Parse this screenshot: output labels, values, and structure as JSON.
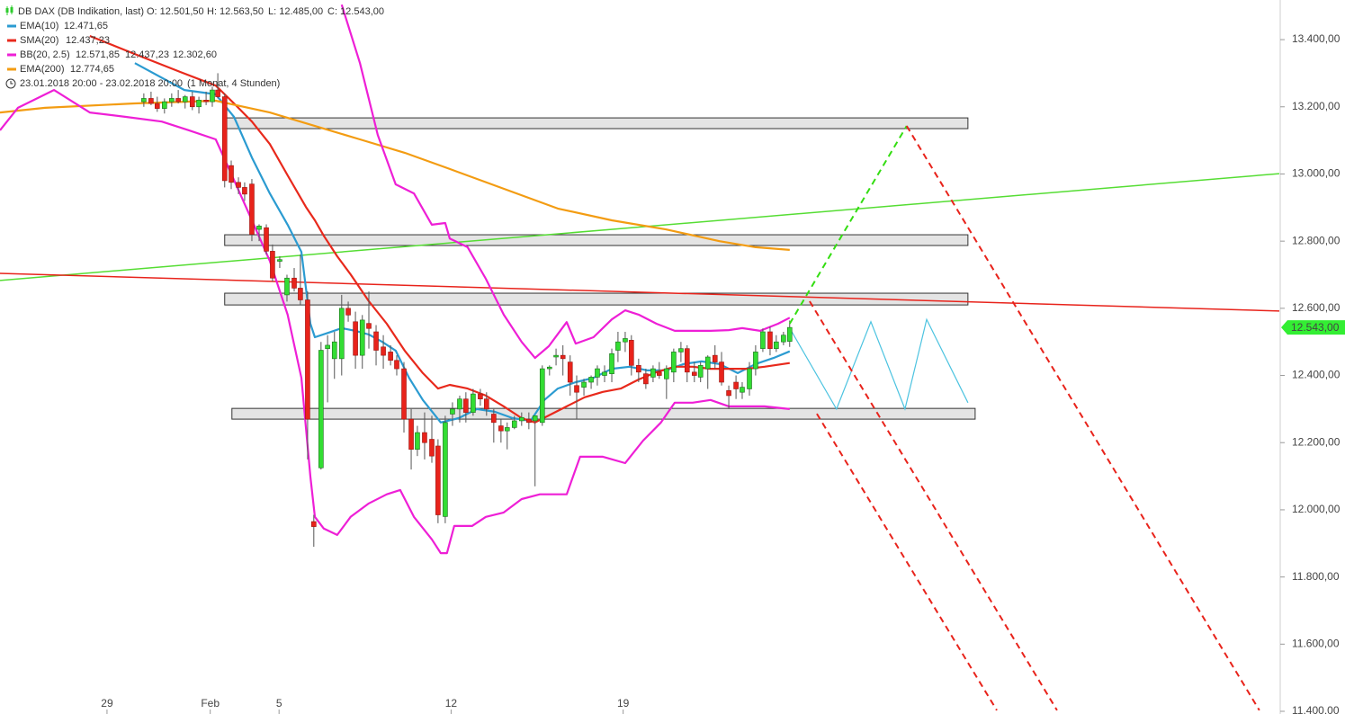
{
  "chart_data": {
    "type": "candlestick",
    "instrument": "DB DAX (DB Indikation, last)",
    "ohlc_labels": [
      "O: 12.501,50",
      "H: 12.563,50",
      "L: 12.485,00",
      "C: 12.543,00"
    ],
    "period": "23.01.2018 20:00 - 23.02.2018 20:00",
    "period_note": "(1 Monat, 4 Stunden)",
    "last_price_label": "12.543,00",
    "last_price_color": "#33ee33",
    "up_color": "#33dd33",
    "down_color": "#e8231b",
    "header_color": "#2ecc2e",
    "xlim": [
      -3.11,
      34.07
    ],
    "ylim": [
      11392,
      13518
    ],
    "xticks": [
      {
        "value": 0,
        "label": "29"
      },
      {
        "value": 3,
        "label": "Feb"
      },
      5,
      {
        "value": 10,
        "label": "12"
      },
      {
        "value": 15,
        "label": "19"
      }
    ],
    "yticks": [
      {
        "value": 13400,
        "label": "13.400,00"
      },
      {
        "value": 13200,
        "label": "13.200,00"
      },
      {
        "value": 13000,
        "label": "13.000,00"
      },
      {
        "value": 12800,
        "label": "12.800,00"
      },
      {
        "value": 12600,
        "label": "12.600,00"
      },
      {
        "value": 12400,
        "label": "12.400,00"
      },
      {
        "value": 12200,
        "label": "12.200,00"
      },
      {
        "value": 12000,
        "label": "12.000,00"
      },
      {
        "value": 11800,
        "label": "11.800,00"
      },
      {
        "value": 11600,
        "label": "11.600,00"
      },
      {
        "value": 11400,
        "label": "11.400,00"
      }
    ],
    "x": [
      1.07,
      1.28,
      1.46,
      1.67,
      1.88,
      2.07,
      2.27,
      2.48,
      2.67,
      2.88,
      3.06,
      3.22,
      3.42,
      3.61,
      3.82,
      4.0,
      4.21,
      4.42,
      4.63,
      4.81,
      5.02,
      5.23,
      5.44,
      5.62,
      5.83,
      6.01,
      6.22,
      6.41,
      6.61,
      6.82,
      7.01,
      7.22,
      7.42,
      7.61,
      7.82,
      8.03,
      8.24,
      8.42,
      8.63,
      8.84,
      9.02,
      9.23,
      9.44,
      9.62,
      9.83,
      10.04,
      10.25,
      10.43,
      10.64,
      10.85,
      11.03,
      11.24,
      11.45,
      11.63,
      11.84,
      12.05,
      12.26,
      12.44,
      12.65,
      12.86,
      13.05,
      13.25,
      13.46,
      13.65,
      13.86,
      14.07,
      14.25,
      14.46,
      14.67,
      14.85,
      15.06,
      15.24,
      15.45,
      15.66,
      15.87,
      16.05,
      16.26,
      16.47,
      16.68,
      16.86,
      17.07,
      17.25,
      17.46,
      17.67,
      17.86,
      18.07,
      18.28,
      18.46,
      18.67,
      18.85,
      19.06,
      19.27,
      19.45,
      19.66,
      19.84
    ],
    "ohlc": [
      [
        13215,
        13240,
        13200,
        13225
      ],
      [
        13225,
        13245,
        13205,
        13210
      ],
      [
        13210,
        13230,
        13185,
        13195
      ],
      [
        13195,
        13225,
        13180,
        13215
      ],
      [
        13215,
        13240,
        13200,
        13225
      ],
      [
        13225,
        13250,
        13210,
        13215
      ],
      [
        13215,
        13235,
        13195,
        13230
      ],
      [
        13230,
        13245,
        13190,
        13200
      ],
      [
        13200,
        13230,
        13180,
        13220
      ],
      [
        13220,
        13245,
        13205,
        13215
      ],
      [
        13215,
        13260,
        13200,
        13250
      ],
      [
        13250,
        13300,
        13225,
        13230
      ],
      [
        13230,
        13240,
        12960,
        12980
      ],
      [
        13025,
        13040,
        12955,
        12975
      ],
      [
        12975,
        12990,
        12940,
        12960
      ],
      [
        12960,
        12975,
        12920,
        12940
      ],
      [
        12970,
        12985,
        12800,
        12820
      ],
      [
        12835,
        12850,
        12800,
        12845
      ],
      [
        12840,
        12850,
        12760,
        12770
      ],
      [
        12770,
        12790,
        12680,
        12690
      ],
      [
        12740,
        12755,
        12720,
        12745
      ],
      [
        12640,
        12700,
        12620,
        12690
      ],
      [
        12690,
        12720,
        12650,
        12660
      ],
      [
        12660,
        12760,
        12610,
        12625
      ],
      [
        12625,
        12650,
        12150,
        12270
      ],
      [
        11965,
        11985,
        11890,
        11950
      ],
      [
        12125,
        12500,
        12120,
        12475
      ],
      [
        12480,
        12520,
        12320,
        12490
      ],
      [
        12450,
        12530,
        12390,
        12500
      ],
      [
        12450,
        12640,
        12400,
        12600
      ],
      [
        12600,
        12620,
        12560,
        12580
      ],
      [
        12560,
        12590,
        12420,
        12460
      ],
      [
        12460,
        12580,
        12420,
        12565
      ],
      [
        12555,
        12650,
        12480,
        12540
      ],
      [
        12530,
        12550,
        12430,
        12475
      ],
      [
        12485,
        12520,
        12420,
        12460
      ],
      [
        12470,
        12490,
        12430,
        12445
      ],
      [
        12445,
        12460,
        12400,
        12420
      ],
      [
        12420,
        12440,
        12230,
        12270
      ],
      [
        12270,
        12300,
        12120,
        12180
      ],
      [
        12180,
        12250,
        12160,
        12230
      ],
      [
        12230,
        12290,
        12150,
        12200
      ],
      [
        12210,
        12280,
        12140,
        12160
      ],
      [
        12190,
        12210,
        11960,
        11985
      ],
      [
        11980,
        12280,
        11960,
        12260
      ],
      [
        12285,
        12320,
        12250,
        12300
      ],
      [
        12300,
        12340,
        12260,
        12330
      ],
      [
        12330,
        12350,
        12260,
        12290
      ],
      [
        12290,
        12360,
        12280,
        12345
      ],
      [
        12345,
        12360,
        12310,
        12330
      ],
      [
        12330,
        12350,
        12280,
        12300
      ],
      [
        12285,
        12300,
        12200,
        12260
      ],
      [
        12250,
        12270,
        12200,
        12235
      ],
      [
        12235,
        12260,
        12180,
        12245
      ],
      [
        12245,
        12280,
        12240,
        12265
      ],
      [
        12265,
        12290,
        12250,
        12275
      ],
      [
        12270,
        12290,
        12240,
        12260
      ],
      [
        12265,
        12280,
        12070,
        12280
      ],
      [
        12260,
        12430,
        12250,
        12420
      ],
      [
        12420,
        12430,
        12400,
        12425
      ],
      [
        12455,
        12480,
        12430,
        12460
      ],
      [
        12460,
        12490,
        12400,
        12450
      ],
      [
        12440,
        12460,
        12340,
        12380
      ],
      [
        12370,
        12400,
        12270,
        12350
      ],
      [
        12365,
        12390,
        12340,
        12380
      ],
      [
        12380,
        12400,
        12360,
        12395
      ],
      [
        12395,
        12430,
        12370,
        12420
      ],
      [
        12400,
        12430,
        12380,
        12410
      ],
      [
        12405,
        12480,
        12380,
        12465
      ],
      [
        12475,
        12530,
        12440,
        12500
      ],
      [
        12500,
        12530,
        12470,
        12510
      ],
      [
        12505,
        12520,
        12400,
        12430
      ],
      [
        12430,
        12450,
        12380,
        12410
      ],
      [
        12405,
        12420,
        12360,
        12375
      ],
      [
        12395,
        12430,
        12380,
        12420
      ],
      [
        12410,
        12440,
        12390,
        12400
      ],
      [
        12390,
        12430,
        12330,
        12420
      ],
      [
        12410,
        12480,
        12380,
        12470
      ],
      [
        12470,
        12500,
        12440,
        12480
      ],
      [
        12480,
        12490,
        12380,
        12410
      ],
      [
        12410,
        12440,
        12380,
        12400
      ],
      [
        12395,
        12440,
        12380,
        12430
      ],
      [
        12420,
        12460,
        12360,
        12455
      ],
      [
        12460,
        12490,
        12420,
        12440
      ],
      [
        12440,
        12470,
        12370,
        12380
      ],
      [
        12355,
        12370,
        12300,
        12340
      ],
      [
        12380,
        12400,
        12330,
        12360
      ],
      [
        12350,
        12380,
        12330,
        12365
      ],
      [
        12360,
        12440,
        12340,
        12420
      ],
      [
        12420,
        12490,
        12400,
        12470
      ],
      [
        12480,
        12540,
        12470,
        12530
      ],
      [
        12530,
        12545,
        12460,
        12480
      ],
      [
        12480,
        12520,
        12470,
        12500
      ],
      [
        12500,
        12530,
        12490,
        12520
      ],
      [
        12501.5,
        12563.5,
        12485,
        12543
      ]
    ],
    "indicators": [
      {
        "name": "EMA(10)",
        "value_label": "12.471,65",
        "color": "#2b9bd1",
        "x": [
          0.81,
          2.25,
          3.16,
          3.69,
          4.21,
          4.73,
          5.25,
          5.65,
          5.91,
          6.04,
          6.43,
          6.82,
          7.22,
          7.61,
          8.0,
          8.39,
          8.78,
          9.18,
          9.7,
          10.22,
          10.75,
          11.27,
          11.79,
          12.31,
          12.71,
          13.1,
          13.62,
          14.14,
          14.67,
          15.19,
          15.71,
          16.24,
          16.76,
          17.28,
          17.8,
          18.33,
          18.85,
          19.37,
          19.84
        ],
        "values": [
          13330,
          13250,
          13237,
          13170,
          13049,
          12942,
          12849,
          12768,
          12554,
          12514,
          12527,
          12541,
          12533,
          12522,
          12500,
          12474,
          12393,
          12327,
          12260,
          12273,
          12300,
          12292,
          12273,
          12265,
          12327,
          12361,
          12380,
          12393,
          12420,
          12426,
          12415,
          12415,
          12434,
          12442,
          12434,
          12407,
          12434,
          12452,
          12472
        ]
      },
      {
        "name": "SMA(20)",
        "value_label": "12.437,23",
        "color": "#e8291c",
        "x": [
          -0.5,
          0.81,
          2.12,
          3.16,
          3.69,
          4.21,
          4.73,
          5.25,
          5.78,
          6.04,
          6.3,
          6.69,
          7.08,
          7.61,
          8.13,
          8.65,
          9.18,
          9.62,
          9.96,
          10.48,
          11.01,
          11.53,
          12.05,
          12.44,
          12.84,
          13.36,
          13.88,
          14.41,
          14.93,
          15.45,
          15.97,
          16.5,
          17.02,
          17.54,
          18.07,
          18.59,
          19.11,
          19.84
        ],
        "values": [
          13411,
          13357,
          13304,
          13263,
          13210,
          13156,
          13089,
          12996,
          12902,
          12862,
          12816,
          12755,
          12701,
          12621,
          12554,
          12474,
          12407,
          12361,
          12372,
          12361,
          12340,
          12308,
          12273,
          12260,
          12281,
          12308,
          12335,
          12351,
          12361,
          12388,
          12410,
          12426,
          12426,
          12420,
          12420,
          12420,
          12426,
          12437
        ]
      },
      {
        "name": "EMA(200)",
        "value_label": "12.774,65",
        "color": "#f39c12",
        "x": [
          -3.11,
          -1.8,
          0.81,
          3.16,
          4.73,
          6.04,
          7.35,
          8.65,
          9.96,
          11.53,
          13.1,
          14.67,
          16.24,
          17.8,
          18.85,
          19.84
        ],
        "values": [
          13183,
          13197,
          13210,
          13218,
          13183,
          13143,
          13103,
          13063,
          13015,
          12956,
          12897,
          12862,
          12835,
          12800,
          12782,
          12774
        ]
      }
    ],
    "bands": {
      "name": "BB(20, 2.5)",
      "value_labels": [
        "12.571,85",
        "12.437,23",
        "12.302,60"
      ],
      "color": "#ee1fd6",
      "upper": {
        "x": [
          6.82,
          7.35,
          7.87,
          8.39,
          8.92,
          9.44,
          9.83,
          9.96,
          10.48,
          11.01,
          11.53,
          12.05,
          12.44,
          12.84,
          13.36,
          13.62,
          14.14,
          14.67,
          15.06,
          15.45,
          15.97,
          16.5,
          17.02,
          17.54,
          18.07,
          18.46,
          18.98,
          19.5,
          19.84
        ],
        "values": [
          13504,
          13330,
          13116,
          12969,
          12942,
          12849,
          12854,
          12808,
          12782,
          12688,
          12581,
          12500,
          12452,
          12487,
          12559,
          12495,
          12514,
          12567,
          12594,
          12581,
          12554,
          12533,
          12533,
          12533,
          12535,
          12541,
          12533,
          12554,
          12572
        ]
      },
      "lower": {
        "x": [
          -3.11,
          -2.59,
          -1.54,
          -0.5,
          0.55,
          1.59,
          2.38,
          3.16,
          3.69,
          4.21,
          4.73,
          5.25,
          5.65,
          5.91,
          6.04,
          6.3,
          6.69,
          7.08,
          7.61,
          8.13,
          8.52,
          8.92,
          9.44,
          9.7,
          9.88,
          10.09,
          10.61,
          11.01,
          11.53,
          12.05,
          12.58,
          13.36,
          13.75,
          14.41,
          15.06,
          15.58,
          16.1,
          16.5,
          17.02,
          17.54,
          18.07,
          18.59,
          19.11,
          19.84
        ],
        "values": [
          13130,
          13197,
          13250,
          13183,
          13170,
          13156,
          13130,
          13103,
          12982,
          12862,
          12741,
          12581,
          12393,
          12099,
          11979,
          11944,
          11925,
          11979,
          12019,
          12046,
          12059,
          11979,
          11912,
          11871,
          11871,
          11952,
          11952,
          11979,
          11992,
          12032,
          12046,
          12046,
          12158,
          12158,
          12139,
          12206,
          12260,
          12319,
          12319,
          12327,
          12308,
          12308,
          12308,
          12300
        ]
      }
    },
    "zone_color": "#e4e4e4",
    "zones": [
      {
        "x": [
          3.42,
          25.02
        ],
        "values": [
          13167,
          13135
        ]
      },
      {
        "x": [
          3.42,
          25.02
        ],
        "values": [
          12819,
          12787
        ]
      },
      {
        "x": [
          3.42,
          25.02
        ],
        "values": [
          12645,
          12610
        ]
      },
      {
        "x": [
          3.63,
          25.23
        ],
        "values": [
          12302,
          12270
        ]
      }
    ],
    "trendlines": [
      {
        "color": "#55dd33",
        "dashed": false,
        "x": [
          -3.11,
          34.07
        ],
        "values": [
          12683,
          13001
        ]
      },
      {
        "color": "#e8231b",
        "dashed": false,
        "x": [
          -3.11,
          34.07
        ],
        "values": [
          12704,
          12592
        ]
      },
      {
        "color": "#33dd11",
        "dashed": true,
        "x": [
          19.84,
          23.24
        ],
        "values": [
          12554,
          13143
        ]
      },
      {
        "color": "#e8231b",
        "dashed": true,
        "x": [
          23.24,
          33.49
        ],
        "values": [
          13143,
          11403
        ]
      },
      {
        "color": "#e8231b",
        "dashed": true,
        "x": [
          20.42,
          27.61
        ],
        "values": [
          12621,
          11403
        ]
      },
      {
        "color": "#e8231b",
        "dashed": true,
        "x": [
          20.63,
          25.86
        ],
        "values": [
          12286,
          11403
        ]
      }
    ],
    "zigzag": {
      "color": "#4cc3e0",
      "x": [
        19.84,
        21.2,
        22.2,
        23.19,
        23.82,
        25.02
      ],
      "values": [
        12541,
        12300,
        12560,
        12300,
        12567,
        12319
      ]
    }
  }
}
